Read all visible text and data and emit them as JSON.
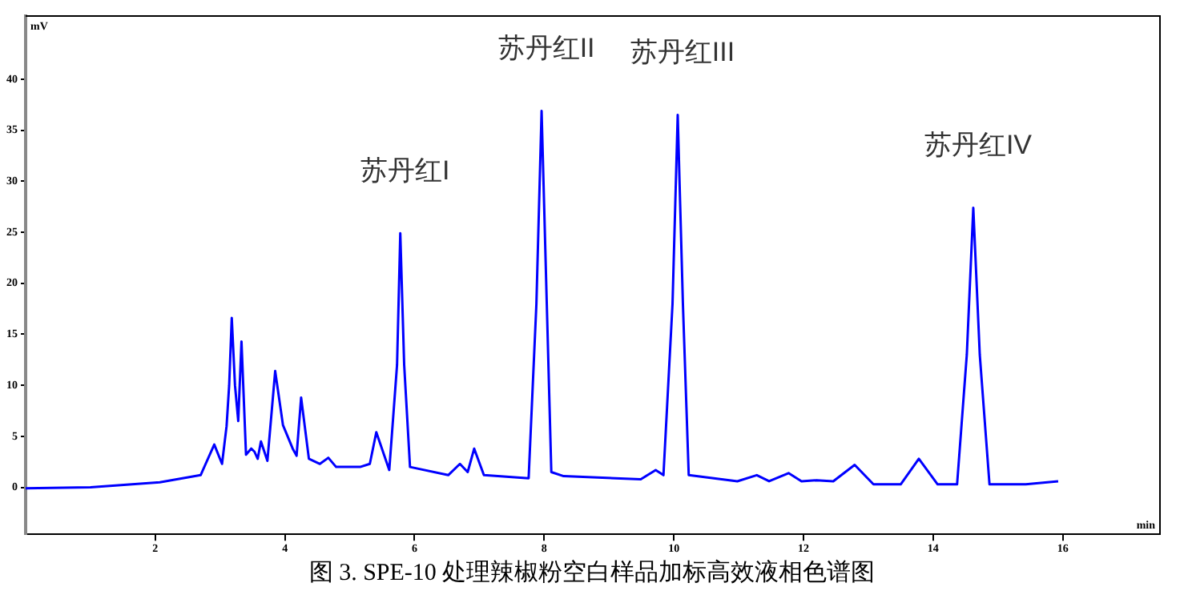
{
  "chart_data": {
    "type": "line",
    "title": "图 3. SPE-10 处理辣椒粉空白样品加标高效液相色谱图",
    "xlabel": "min",
    "ylabel": "mV",
    "xlim": [
      0,
      17.5
    ],
    "xticks": [
      2,
      4,
      6,
      8,
      10,
      12,
      14,
      16
    ],
    "ylim": [
      -4.6,
      46.2
    ],
    "yticks": [
      0,
      5,
      10,
      15,
      20,
      25,
      30,
      35,
      40
    ],
    "grid": false,
    "legend": false,
    "marker": "none",
    "line_style": "solid",
    "annotations": [
      {
        "text": "苏丹红I",
        "x": 5.78,
        "y": 24.9
      },
      {
        "text": "苏丹红II",
        "x": 7.96,
        "y": 36.9
      },
      {
        "text": "苏丹红III",
        "x": 10.06,
        "y": 36.5
      },
      {
        "text": "苏丹红IV",
        "x": 14.62,
        "y": 27.4
      }
    ],
    "series": [
      {
        "color": "#0000ff",
        "x": [
          0,
          1,
          2.07,
          2.7,
          2.91,
          3.03,
          3.1,
          3.14,
          3.18,
          3.23,
          3.28,
          3.33,
          3.4,
          3.48,
          3.53,
          3.58,
          3.63,
          3.73,
          3.85,
          3.97,
          4.12,
          4.18,
          4.25,
          4.37,
          4.54,
          4.67,
          4.79,
          5.16,
          5.31,
          5.41,
          5.61,
          5.73,
          5.78,
          5.84,
          5.93,
          6.52,
          6.7,
          6.82,
          6.92,
          7.07,
          7.76,
          7.88,
          7.96,
          8.04,
          8.11,
          8.3,
          9.49,
          9.72,
          9.84,
          9.98,
          10.06,
          10.14,
          10.23,
          10.98,
          11.28,
          11.47,
          11.77,
          11.97,
          12.2,
          12.46,
          12.79,
          13.08,
          13.5,
          13.78,
          14.07,
          14.37,
          14.52,
          14.62,
          14.72,
          14.87,
          15.43,
          15.93
        ],
        "values": [
          -0.1,
          0,
          0.5,
          1.2,
          4.2,
          2.3,
          6,
          10,
          16.6,
          10,
          6.5,
          14.3,
          3.2,
          3.8,
          3.5,
          2.8,
          4.5,
          2.6,
          11.4,
          6.1,
          3.8,
          3.1,
          8.8,
          2.8,
          2.3,
          2.9,
          2,
          2,
          2.3,
          5.4,
          1.7,
          12,
          24.9,
          12,
          2,
          1.2,
          2.3,
          1.5,
          3.8,
          1.2,
          0.9,
          18,
          36.9,
          18,
          1.5,
          1.1,
          0.8,
          1.7,
          1.2,
          18,
          36.5,
          18,
          1.2,
          0.6,
          1.2,
          0.6,
          1.4,
          0.6,
          0.7,
          0.6,
          2.2,
          0.3,
          0.3,
          2.8,
          0.3,
          0.3,
          13,
          27.4,
          13,
          0.3,
          0.3,
          0.6
        ]
      }
    ]
  }
}
